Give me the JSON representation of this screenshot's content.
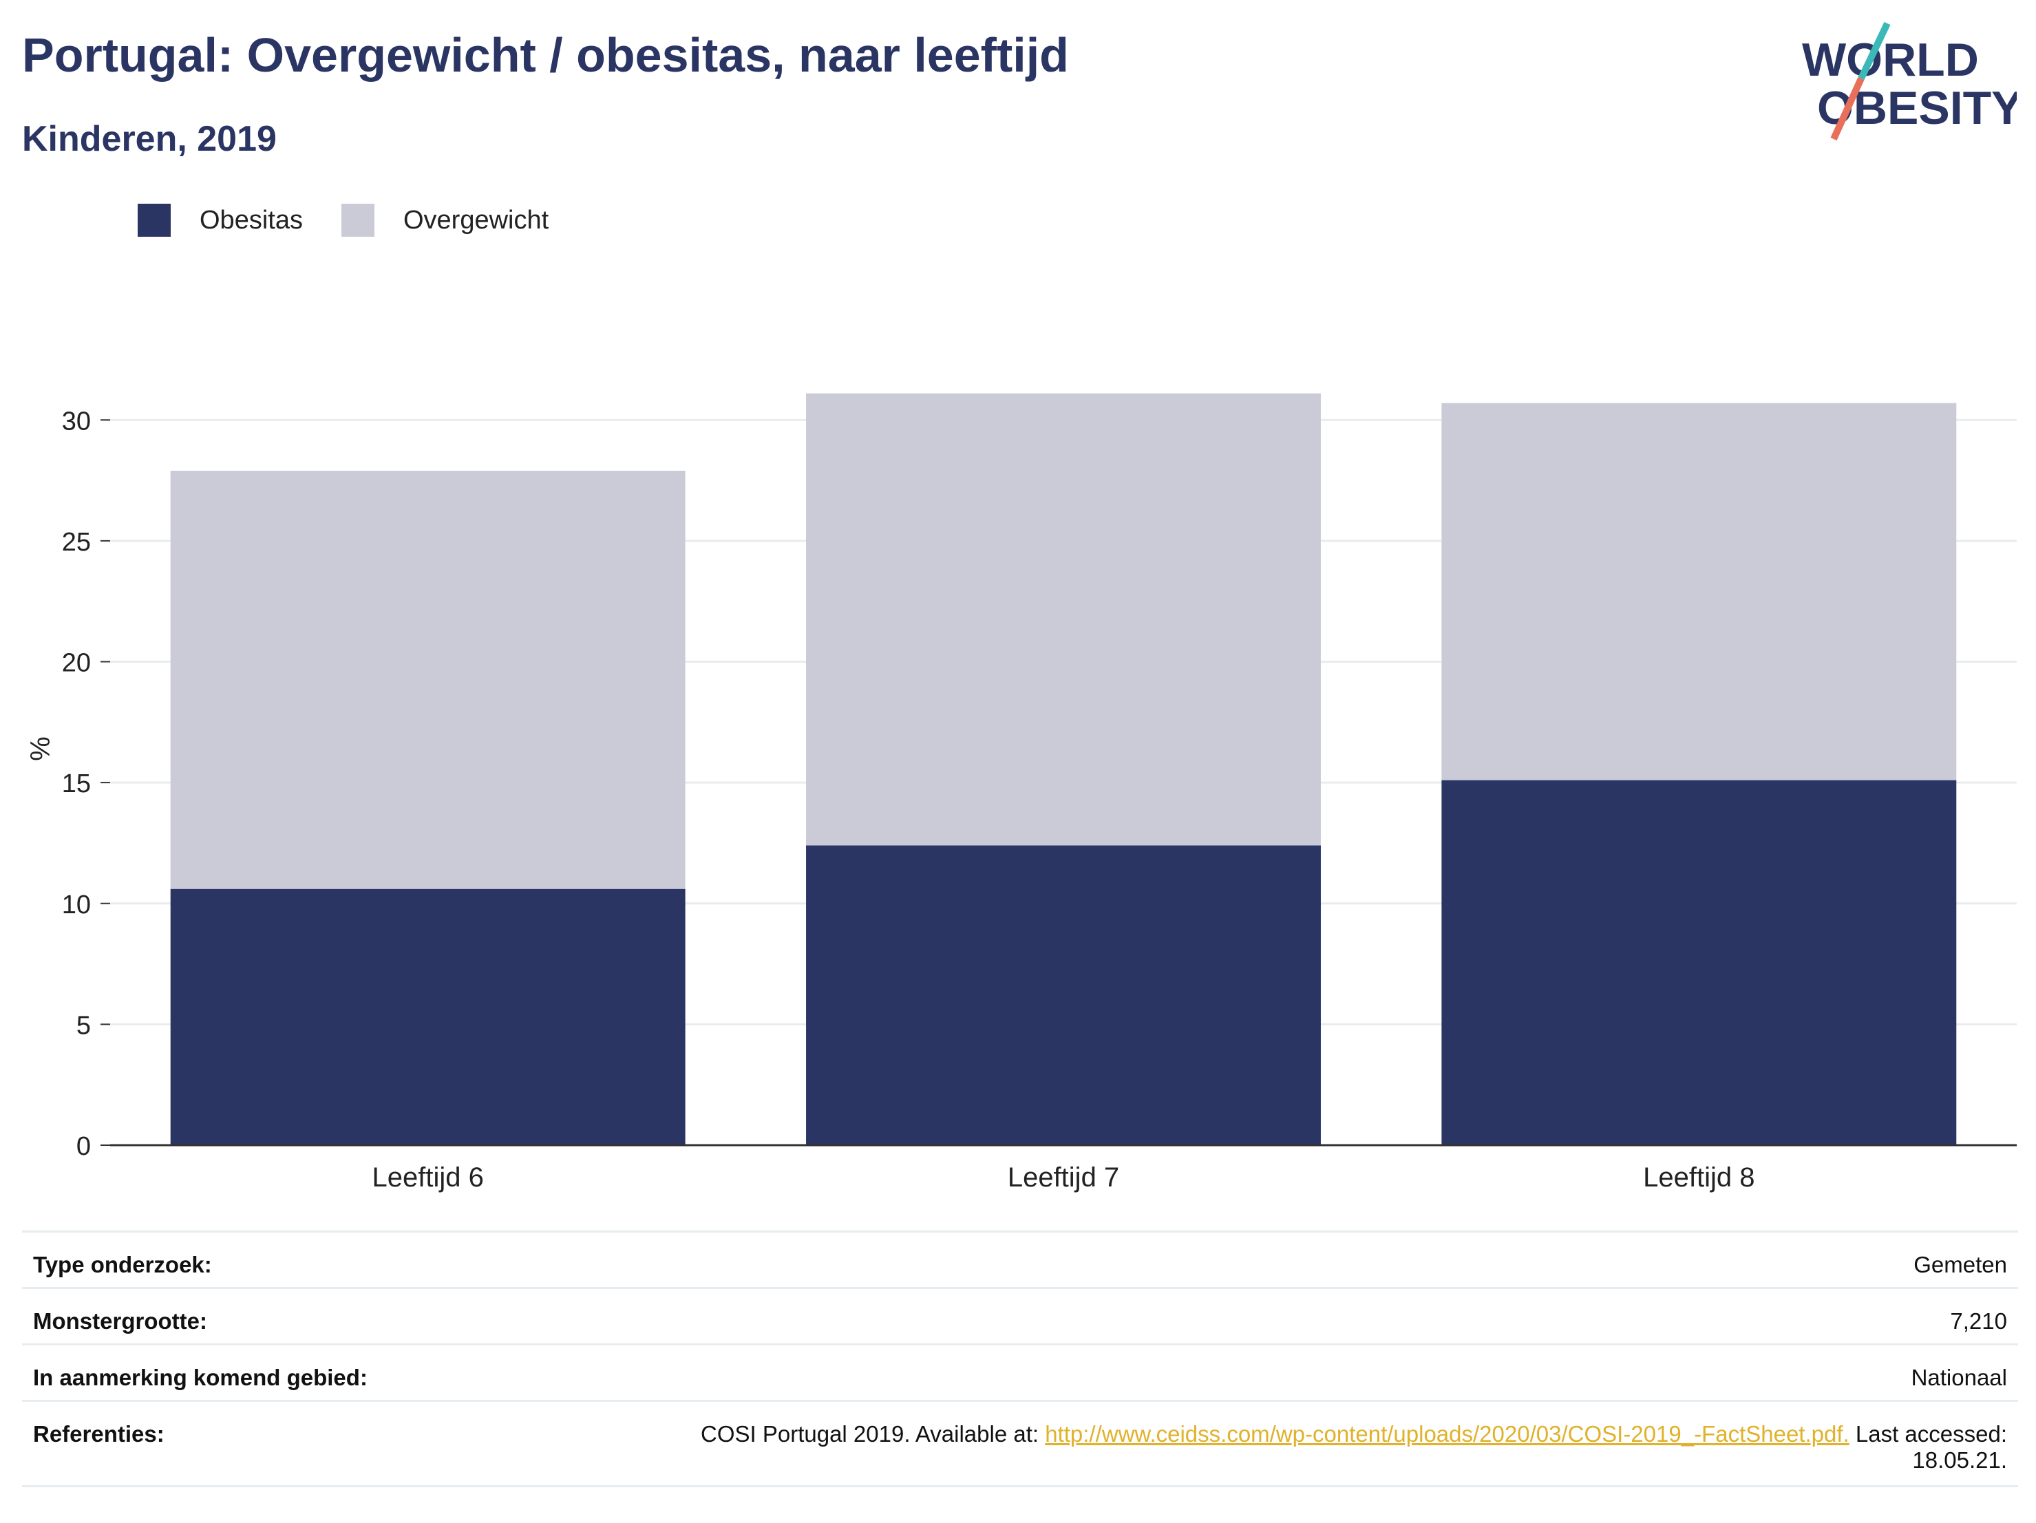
{
  "header": {
    "title": "Portugal: Overgewicht / obesitas, naar leeftijd",
    "subtitle": "Kinderen, 2019"
  },
  "logo": {
    "line1": "WORLD",
    "line2": "OBESITY",
    "colors": {
      "text": "#2a3563",
      "slash_top": "#3bb8b8",
      "slash_bottom": "#e8705a"
    }
  },
  "colors": {
    "obesitas": "#2a3563",
    "overgewicht": "#cacbd7",
    "axis": "#333333",
    "grid": "#e9ecef"
  },
  "chart_data": {
    "type": "bar",
    "stacked": true,
    "categories": [
      "Leeftijd 6",
      "Leeftijd 7",
      "Leeftijd 8"
    ],
    "series": [
      {
        "name": "Obesitas",
        "values": [
          10.6,
          12.4,
          15.1
        ],
        "color": "#2a3563"
      },
      {
        "name": "Overgewicht",
        "values": [
          17.3,
          18.7,
          15.6
        ],
        "color": "#cacbd7"
      }
    ],
    "ylabel": "%",
    "xlabel": "",
    "ylim": [
      0,
      32
    ],
    "yticks": [
      0,
      5,
      10,
      15,
      20,
      25,
      30
    ],
    "grid": true,
    "legend": "top-left"
  },
  "info": {
    "rows": [
      {
        "label": "Type onderzoek:",
        "value": "Gemeten"
      },
      {
        "label": "Monstergrootte:",
        "value": "7,210"
      },
      {
        "label": "In aanmerking komend gebied:",
        "value": "Nationaal"
      }
    ],
    "ref_label": "Referenties:",
    "ref_prefix": "COSI Portugal 2019. Available at: ",
    "ref_link": "http://www.ceidss.com/wp-content/uploads/2020/03/COSI-2019_-FactSheet.pdf.",
    "ref_suffix": " Last accessed:",
    "ref_date": "18.05.21."
  }
}
